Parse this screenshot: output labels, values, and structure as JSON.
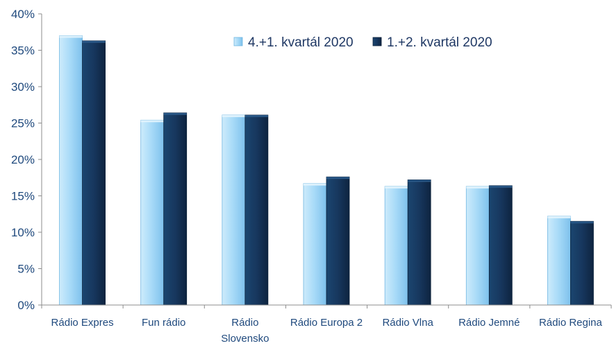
{
  "chart_data": {
    "type": "bar",
    "title": "",
    "xlabel": "",
    "ylabel": "",
    "ylim": [
      0,
      40
    ],
    "yticks": [
      "0%",
      "5%",
      "10%",
      "15%",
      "20%",
      "25%",
      "30%",
      "35%",
      "40%"
    ],
    "y_tick_values": [
      0,
      5,
      10,
      15,
      20,
      25,
      30,
      35,
      40
    ],
    "categories": [
      [
        "Rádio Expres"
      ],
      [
        "Fun rádio"
      ],
      [
        "Rádio",
        "Slovensko"
      ],
      [
        "Rádio Europa 2"
      ],
      [
        "Rádio Vlna"
      ],
      [
        "Rádio Jemné"
      ],
      [
        "Rádio Regina"
      ]
    ],
    "series": [
      {
        "name": "4.+1. kvartál 2020",
        "color": "#9BD3F5",
        "values": [
          37.0,
          25.4,
          26.1,
          16.7,
          16.3,
          16.3,
          12.2
        ]
      },
      {
        "name": "1.+2. kvartál 2020",
        "color": "#17375E",
        "values": [
          36.3,
          26.4,
          26.1,
          17.6,
          17.2,
          16.4,
          11.5
        ]
      }
    ],
    "legend_position": "top-right",
    "grid": false
  }
}
